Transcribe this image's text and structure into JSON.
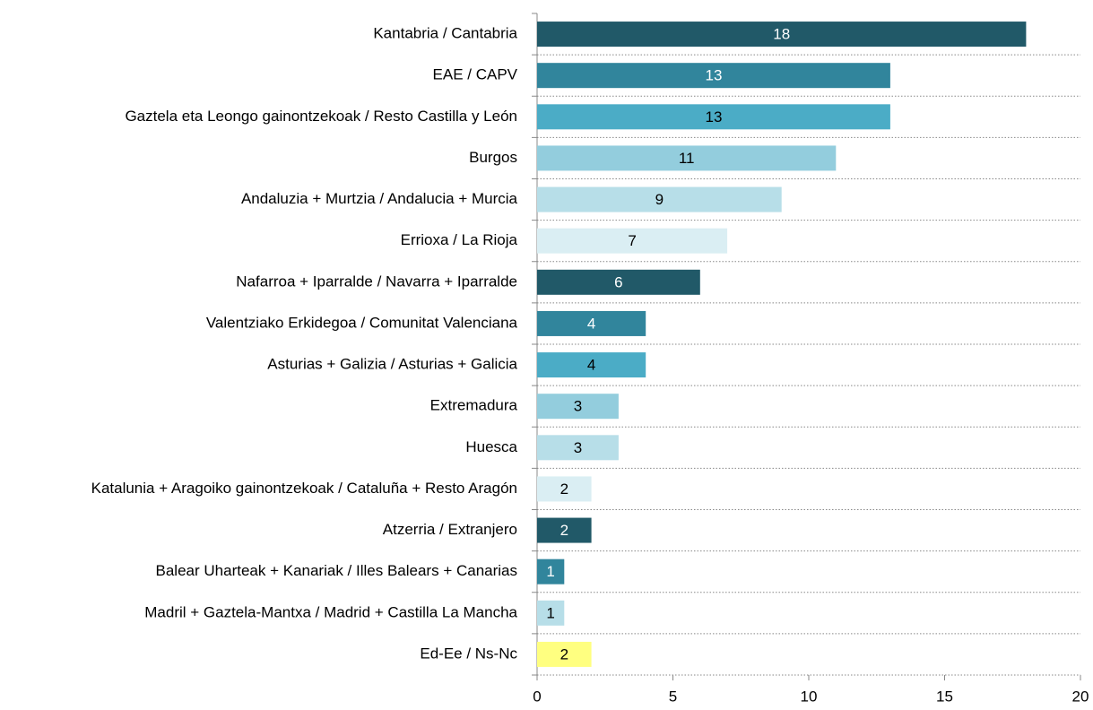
{
  "chart_data": {
    "type": "barh",
    "categories": [
      "Kantabria / Cantabria",
      "EAE / CAPV",
      "Gaztela eta Leongo gainontzekoak / Resto Castilla y León",
      "Burgos",
      "Andaluzia + Murtzia / Andalucia + Murcia",
      "Errioxa / La Rioja",
      "Nafarroa + Iparralde / Navarra + Iparralde",
      "Valentziako Erkidegoa / Comunitat Valenciana",
      "Asturias + Galizia / Asturias + Galicia",
      "Extremadura",
      "Huesca",
      "Katalunia + Aragoiko gainontzekoak / Cataluña + Resto Aragón",
      "Atzerria / Extranjero",
      "Balear Uharteak + Kanariak / Illes Balears + Canarias",
      "Madril + Gaztela-Mantxa / Madrid + Castilla La Mancha",
      "Ed-Ee / Ns-Nc"
    ],
    "values": [
      18,
      13,
      13,
      11,
      9,
      7,
      6,
      4,
      4,
      3,
      3,
      2,
      2,
      1,
      1,
      2
    ],
    "colors": [
      "#215968",
      "#31859c",
      "#4bacc6",
      "#93cddd",
      "#b7dee8",
      "#daeef3",
      "#215968",
      "#31859c",
      "#4bacc6",
      "#93cddd",
      "#b7dee8",
      "#daeef3",
      "#215968",
      "#31859c",
      "#b7dee8",
      "#ffff80"
    ],
    "xlim": [
      0,
      20
    ],
    "xticks": [
      0,
      5,
      10,
      15,
      20
    ]
  }
}
